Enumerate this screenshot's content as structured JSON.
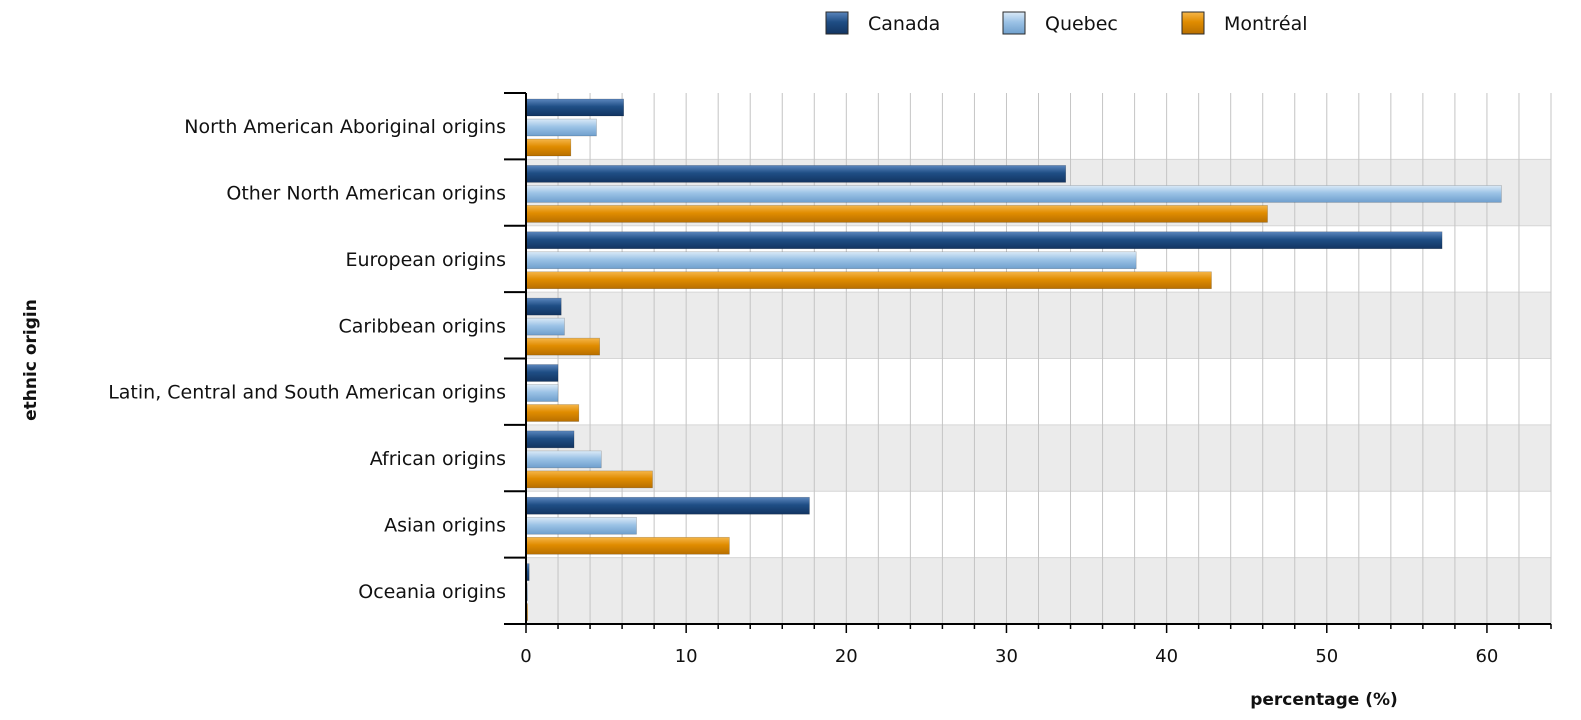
{
  "chart_data": {
    "type": "bar",
    "orientation": "horizontal",
    "title": "",
    "xlabel": "percentage (%)",
    "ylabel": "ethnic origin",
    "xlim": [
      0,
      64
    ],
    "xticks": [
      0,
      10,
      20,
      30,
      40,
      50,
      60
    ],
    "grid": true,
    "legend_position": "top",
    "categories": [
      "North American Aboriginal origins",
      "Other North American origins",
      "European origins",
      "Caribbean origins",
      "Latin, Central and South American origins",
      "African origins",
      "Asian origins",
      "Oceania origins"
    ],
    "series": [
      {
        "name": "Canada",
        "color": "#1f4e85",
        "values": [
          6.1,
          33.7,
          57.2,
          2.2,
          2.0,
          3.0,
          17.7,
          0.2
        ]
      },
      {
        "name": "Quebec",
        "color": "#9cc3e6",
        "values": [
          4.4,
          60.9,
          38.1,
          2.4,
          2.0,
          4.7,
          6.9,
          0.05
        ]
      },
      {
        "name": "Montréal",
        "color": "#e08c00",
        "values": [
          2.8,
          46.3,
          42.8,
          4.6,
          3.3,
          7.9,
          12.7,
          0.1
        ]
      }
    ]
  }
}
